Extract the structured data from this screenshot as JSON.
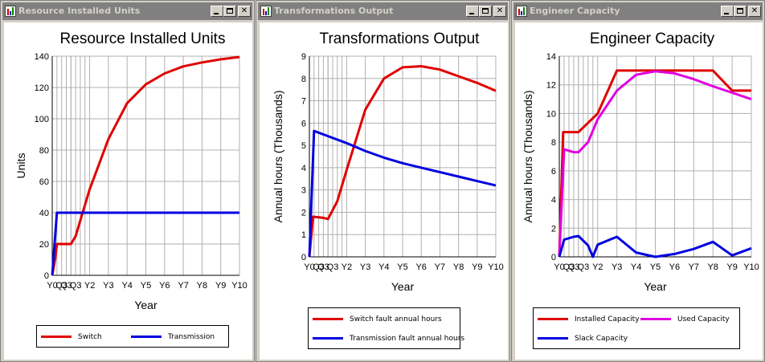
{
  "windows": [
    {
      "title": "Resource Installed Units",
      "chart_data": {
        "type": "line",
        "title": "Resource Installed Units",
        "xlabel": "Year",
        "ylabel": "Units",
        "x_ticks": [
          "Y0",
          "Q3",
          "Q3",
          "Q3",
          "Y2",
          "Y3",
          "Y4",
          "Y5",
          "Y6",
          "Y7",
          "Y8",
          "Y9",
          "Y10"
        ],
        "ylim": [
          0,
          140
        ],
        "y_ticks": [
          "0",
          "20",
          "40",
          "60",
          "80",
          "100",
          "120",
          "140"
        ],
        "grid": true,
        "legend_position": "bottom",
        "series": [
          {
            "name": "Switch",
            "color": "#e00000",
            "x": [
              0,
              0.15,
              0.25,
              1,
              1.25,
              1.5,
              2,
              3,
              4,
              5,
              6,
              7,
              8,
              9,
              10
            ],
            "y": [
              0,
              10,
              20,
              20,
              25,
              35,
              55,
              87,
              110,
              122,
              129,
              133.5,
              136,
              138,
              139.5
            ]
          },
          {
            "name": "Transmission",
            "color": "#0000e0",
            "x": [
              0,
              0.25,
              10
            ],
            "y": [
              0,
              40,
              40
            ]
          }
        ]
      }
    },
    {
      "title": "Transformations Output",
      "chart_data": {
        "type": "line",
        "title": "Transformations Output",
        "xlabel": "Year",
        "ylabel": "Annual hours  (Thousands)",
        "x_ticks": [
          "Y0",
          "Q3",
          "Q3",
          "Q3",
          "Y2",
          "Y3",
          "Y4",
          "Y5",
          "Y6",
          "Y7",
          "Y8",
          "Y9",
          "Y10"
        ],
        "ylim": [
          0,
          9
        ],
        "y_ticks": [
          "0",
          "1",
          "2",
          "3",
          "4",
          "5",
          "6",
          "7",
          "8",
          "9"
        ],
        "grid": true,
        "legend_position": "bottom",
        "series": [
          {
            "name": "Switch fault annual hours",
            "color": "#e00000",
            "x": [
              0,
              0.2,
              0.75,
              1,
              1.5,
              2,
              3,
              4,
              5,
              6,
              7,
              8,
              9,
              10
            ],
            "y": [
              0,
              1.8,
              1.75,
              1.7,
              2.5,
              3.9,
              6.6,
              8.0,
              8.5,
              8.55,
              8.4,
              8.1,
              7.8,
              7.45
            ]
          },
          {
            "name": "Transmission fault annual hours",
            "color": "#0000e0",
            "x": [
              0,
              0.25,
              2,
              3,
              4,
              5,
              6,
              7,
              8,
              9,
              10
            ],
            "y": [
              0,
              5.65,
              5.1,
              4.75,
              4.45,
              4.2,
              4.0,
              3.8,
              3.6,
              3.4,
              3.2
            ]
          }
        ]
      }
    },
    {
      "title": "Engineer Capacity",
      "chart_data": {
        "type": "line",
        "title": "Engineer Capacity",
        "xlabel": "Year",
        "ylabel": "Annual hours  (Thousands)",
        "x_ticks": [
          "Y0",
          "Q3",
          "Q3",
          "Q3",
          "Y2",
          "Y3",
          "Y4",
          "Y5",
          "Y6",
          "Y7",
          "Y8",
          "Y9",
          "Y10"
        ],
        "ylim": [
          0,
          14
        ],
        "y_ticks": [
          "0",
          "2",
          "4",
          "6",
          "8",
          "10",
          "12",
          "14"
        ],
        "grid": true,
        "legend_position": "bottom",
        "series": [
          {
            "name": "Installed Capacity",
            "color": "#e00000",
            "x": [
              0,
              0.2,
              0.25,
              1,
              2,
              3,
              4,
              5,
              6,
              7,
              8,
              9,
              10
            ],
            "y": [
              0,
              8.7,
              8.7,
              8.7,
              10,
              13,
              13,
              13,
              13,
              13,
              13,
              11.6,
              11.6
            ]
          },
          {
            "name": "Used Capacity",
            "color": "#e000e0",
            "x": [
              0,
              0.25,
              0.75,
              1,
              1.5,
              2,
              3,
              4,
              5,
              6,
              7,
              8,
              9,
              10
            ],
            "y": [
              0,
              7.5,
              7.3,
              7.3,
              8.0,
              9.6,
              11.6,
              12.7,
              12.95,
              12.8,
              12.4,
              11.9,
              11.45,
              11.0
            ]
          },
          {
            "name": "Slack Capacity",
            "color": "#0000e0",
            "x": [
              0,
              0.25,
              0.75,
              1,
              1.5,
              1.75,
              2,
              3,
              4,
              5,
              6,
              7,
              8,
              9,
              10
            ],
            "y": [
              0,
              1.2,
              1.4,
              1.45,
              0.8,
              0.0,
              0.85,
              1.4,
              0.3,
              0.0,
              0.2,
              0.55,
              1.05,
              0.1,
              0.6
            ]
          }
        ]
      }
    }
  ]
}
